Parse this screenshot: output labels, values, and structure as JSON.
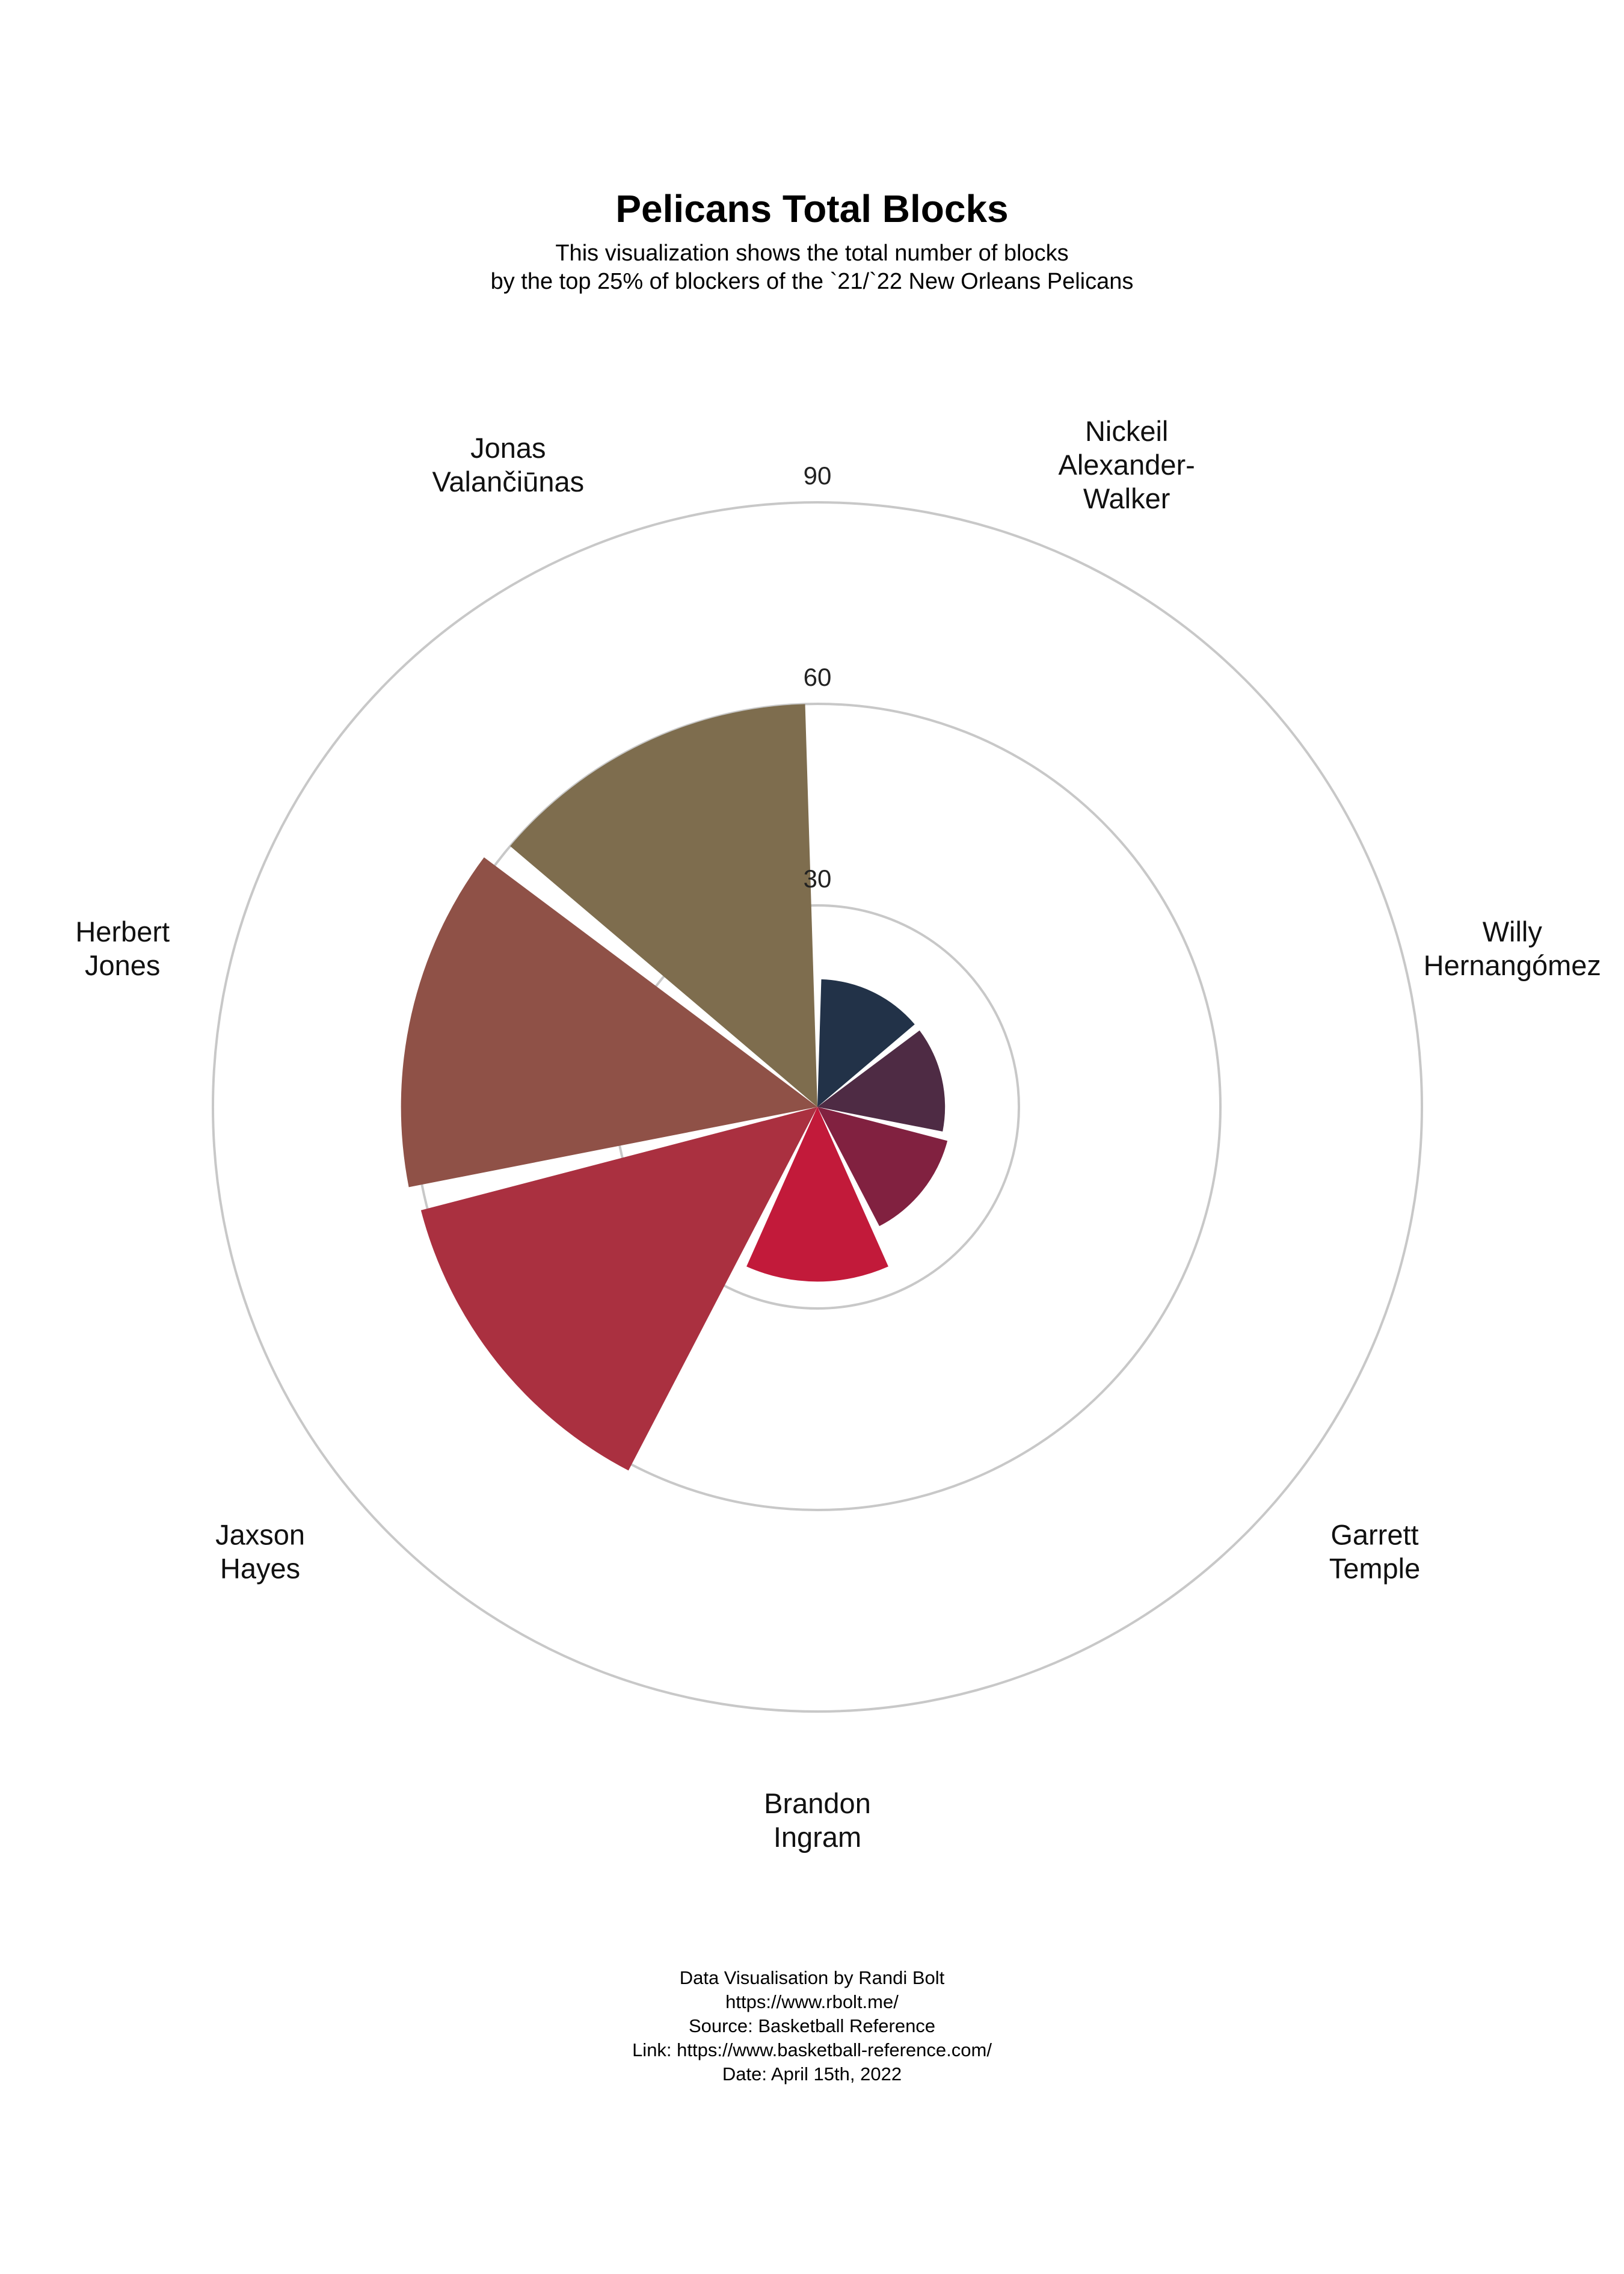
{
  "title": "Pelicans Total Blocks",
  "subtitle_line1": "This visualization shows the total number of blocks",
  "subtitle_line2": "by the top 25% of blockers of the `21/`22  New Orleans Pelicans",
  "footer": [
    "Data Visualisation by Randi Bolt",
    "https://www.rbolt.me/",
    "Source: Basketball Reference",
    "Link: https://www.basketball-reference.com/",
    "Date: April 15th, 2022"
  ],
  "chart_data": {
    "type": "polar-bar",
    "categories": [
      "Nickeil Alexander-Walker",
      "Willy Hernangómez",
      "Garrett Temple",
      "Brandon Ingram",
      "Jaxson Hayes",
      "Herbert Jones",
      "Jonas Valančiūnas"
    ],
    "category_label_lines": [
      [
        "Nickeil",
        "Alexander-",
        "Walker"
      ],
      [
        "Willy",
        "Hernangómez"
      ],
      [
        "Garrett",
        "Temple"
      ],
      [
        "Brandon",
        "Ingram"
      ],
      [
        "Jaxson",
        "Hayes"
      ],
      [
        "Herbert",
        "Jones"
      ],
      [
        "Jonas",
        "Valančiūnas"
      ]
    ],
    "values": [
      19,
      19,
      20,
      26,
      61,
      62,
      60
    ],
    "colors": [
      "#223248",
      "#4e2b44",
      "#812140",
      "#c21a3a",
      "#aa3040",
      "#8f5147",
      "#7e6d4e"
    ],
    "radial_ticks": [
      30,
      60,
      90
    ],
    "rlim": [
      0,
      90
    ],
    "grid": true,
    "grid_color": "#c8c8c8"
  }
}
